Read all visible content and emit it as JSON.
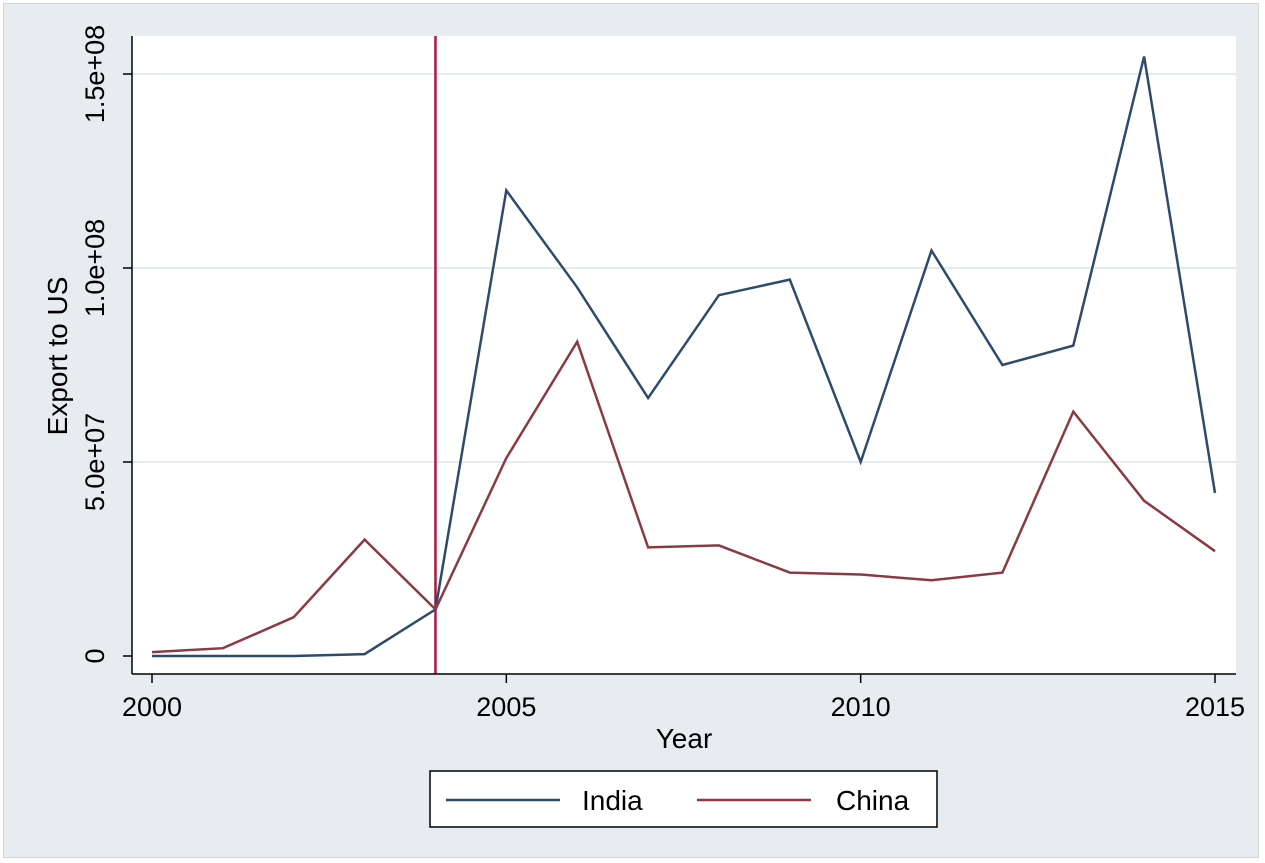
{
  "chart_data": {
    "type": "line",
    "title": "",
    "xlabel": "Year",
    "ylabel": "Export to US",
    "x": [
      2000,
      2001,
      2002,
      2003,
      2004,
      2005,
      2006,
      2007,
      2008,
      2009,
      2010,
      2011,
      2012,
      2013,
      2014,
      2015
    ],
    "series": [
      {
        "name": "India",
        "color": "#2f4b6c",
        "values": [
          0,
          0,
          0,
          500000,
          12000000,
          120000000,
          95000000,
          66500000,
          93000000,
          97000000,
          50000000,
          104500000,
          75000000,
          80000000,
          154500000,
          42000000
        ]
      },
      {
        "name": "China",
        "color": "#8b3a44",
        "values": [
          1000000,
          2000000,
          10000000,
          30000000,
          12000000,
          51000000,
          81000000,
          28000000,
          28500000,
          21500000,
          21000000,
          19500000,
          21500000,
          63000000,
          40000000,
          27000000
        ]
      }
    ],
    "xticks": [
      {
        "value": 2000,
        "label": "2000"
      },
      {
        "value": 2005,
        "label": "2005"
      },
      {
        "value": 2010,
        "label": "2010"
      },
      {
        "value": 2015,
        "label": "2015"
      }
    ],
    "yticks": [
      {
        "value": 0,
        "label": "0"
      },
      {
        "value": 50000000,
        "label": "5.0e+07"
      },
      {
        "value": 100000000,
        "label": "1.0e+08"
      },
      {
        "value": 150000000,
        "label": "1.5e+08"
      }
    ],
    "xlim": [
      2000,
      2015
    ],
    "ylim": [
      0,
      150000000
    ],
    "reference_line": {
      "x": 2004,
      "color": "#b0163f"
    },
    "grid": true,
    "legend_position": "bottom"
  }
}
